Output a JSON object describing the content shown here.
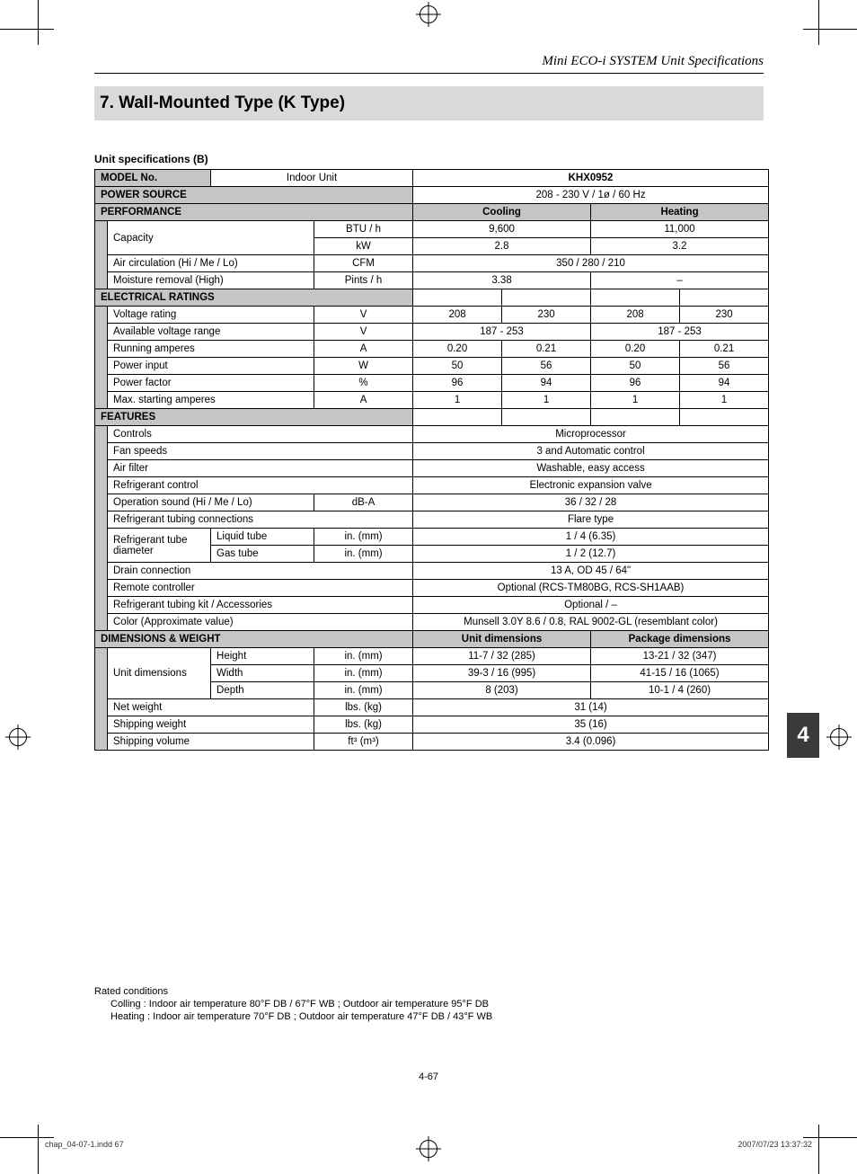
{
  "running_head": "Mini ECO-i SYSTEM Unit Specifications",
  "title": "7. Wall-Mounted Type (K Type)",
  "subhead": "Unit specifications (B)",
  "side_tab": "4",
  "page_number": "4-67",
  "footer": {
    "left": "chap_04-07-1.indd   67",
    "right": "2007/07/23   13:37:32"
  },
  "footnotes": {
    "title": "Rated conditions",
    "cooling": "Colling : Indoor air temperature 80°F DB / 67°F WB ; Outdoor air temperature 95°F DB",
    "heating": "Heating : Indoor air temperature 70°F DB ; Outdoor air temperature 47°F DB / 43°F WB"
  },
  "table": {
    "model_no_label": "MODEL No.",
    "indoor_unit_label": "Indoor Unit",
    "model_no_value": "KHX0952",
    "power_source_label": "POWER SOURCE",
    "power_source_value": "208 - 230 V / 1ø / 60 Hz",
    "performance_label": "PERFORMANCE",
    "cooling_label": "Cooling",
    "heating_label": "Heating",
    "capacity_label": "Capacity",
    "btu_label": "BTU / h",
    "btu_cool": "9,600",
    "btu_heat": "11,000",
    "kw_label": "kW",
    "kw_cool": "2.8",
    "kw_heat": "3.2",
    "air_circ_label": "Air circulation (Hi / Me / Lo)",
    "cfm_label": "CFM",
    "air_circ_value": "350 / 280 / 210",
    "moisture_label": "Moisture removal (High)",
    "pints_label": "Pints / h",
    "moisture_cool": "3.38",
    "moisture_heat": "–",
    "elec_label": "ELECTRICAL RATINGS",
    "voltage_rating_label": "Voltage rating",
    "v_label": "V",
    "vr": [
      "208",
      "230",
      "208",
      "230"
    ],
    "avr_label": "Available voltage range",
    "avr_cool": "187 - 253",
    "avr_heat": "187 - 253",
    "ra_label": "Running amperes",
    "a_label": "A",
    "ra": [
      "0.20",
      "0.21",
      "0.20",
      "0.21"
    ],
    "pi_label": "Power input",
    "w_label": "W",
    "pi": [
      "50",
      "56",
      "50",
      "56"
    ],
    "pf_label": "Power factor",
    "pct_label": "%",
    "pf": [
      "96",
      "94",
      "96",
      "94"
    ],
    "msa_label": "Max. starting amperes",
    "msa": [
      "1",
      "1",
      "1",
      "1"
    ],
    "features_label": "FEATURES",
    "controls_label": "Controls",
    "controls_value": "Microprocessor",
    "fan_label": "Fan speeds",
    "fan_value": "3 and Automatic control",
    "filter_label": "Air filter",
    "filter_value": "Washable, easy access",
    "refctl_label": "Refrigerant control",
    "refctl_value": "Electronic expansion valve",
    "opsnd_label": "Operation sound (Hi / Me / Lo)",
    "dba_label": "dB-A",
    "opsnd_value": "36 / 32 / 28",
    "tubconn_label": "Refrigerant tubing connections",
    "tubconn_value": "Flare type",
    "tubdia_label": "Refrigerant tube diameter",
    "liquid_label": "Liquid tube",
    "inmm_label": "in. (mm)",
    "liquid_value": "1 / 4 (6.35)",
    "gas_label": "Gas tube",
    "gas_value": "1 / 2 (12.7)",
    "drain_label": "Drain connection",
    "drain_value": "13 A, OD 45 / 64\"",
    "remote_label": "Remote controller",
    "remote_value": "Optional (RCS-TM80BG, RCS-SH1AAB)",
    "tubkit_label": "Refrigerant tubing kit / Accessories",
    "tubkit_value": "Optional / –",
    "color_label": "Color (Approximate value)",
    "color_value": "Munsell 3.0Y 8.6 / 0.8, RAL 9002-GL (resemblant color)",
    "dim_label": "DIMENSIONS & WEIGHT",
    "unit_dim_label": "Unit dimensions",
    "pkg_dim_label": "Package dimensions",
    "ud_label": "Unit dimensions",
    "height_label": "Height",
    "height_u": "11-7 / 32 (285)",
    "height_p": "13-21 / 32 (347)",
    "width_label": "Width",
    "width_u": "39-3 / 16 (995)",
    "width_p": "41-15 / 16 (1065)",
    "depth_label": "Depth",
    "depth_u": "8 (203)",
    "depth_p": "10-1 / 4 (260)",
    "netw_label": "Net weight",
    "lbskg_label": "lbs. (kg)",
    "netw_value": "31 (14)",
    "shipw_label": "Shipping weight",
    "shipw_value": "35 (16)",
    "shipv_label": "Shipping volume",
    "ft3m3_label": "ft³ (m³)",
    "shipv_value": "3.4 (0.096)"
  }
}
